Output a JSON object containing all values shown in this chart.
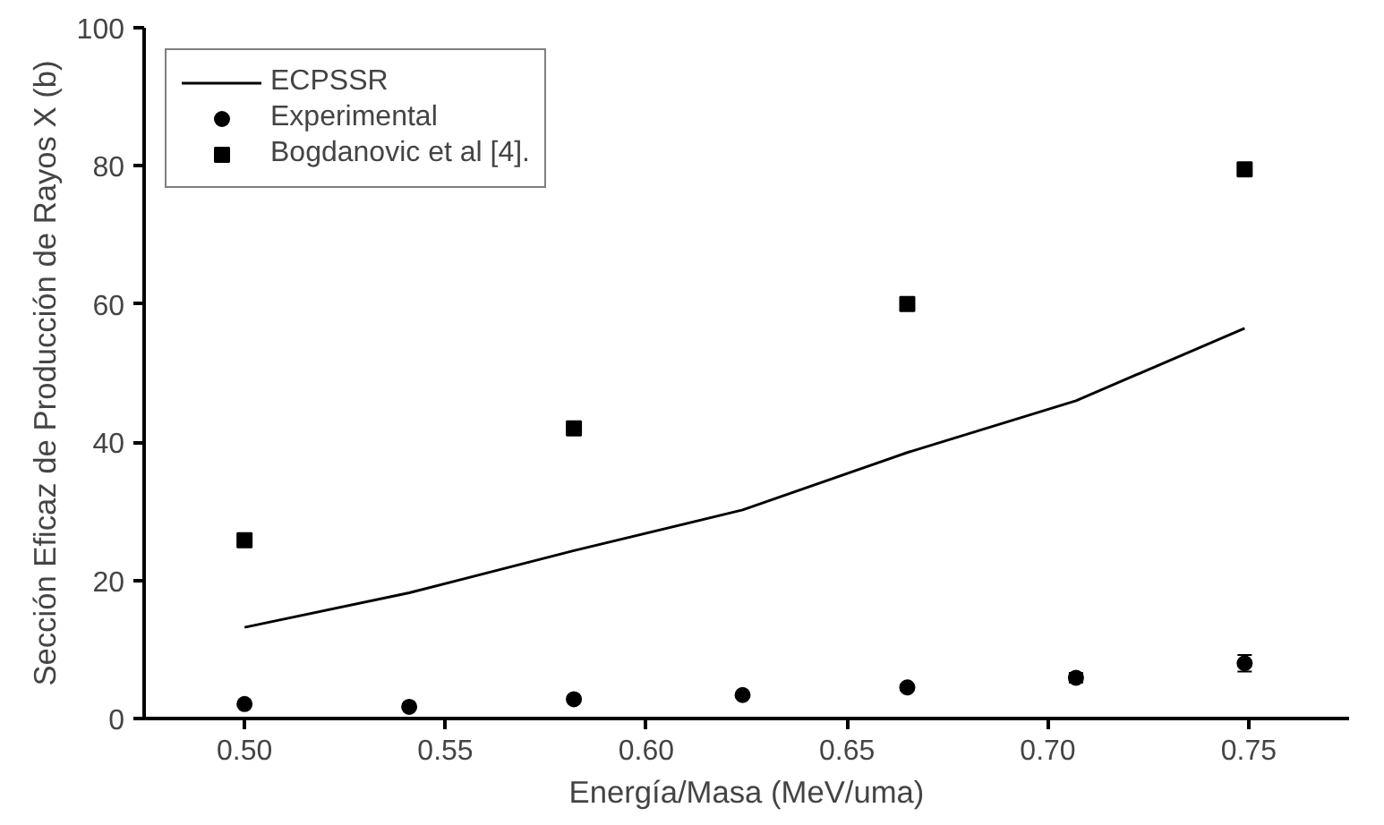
{
  "chart_data": {
    "type": "scatter",
    "xlabel": "Energía/Masa (MeV/uma)",
    "ylabel": "Sección Eficaz de Producción de Rayos X (b)",
    "xlim": [
      0.475,
      0.775
    ],
    "xticks": [
      {
        "value": 0.5,
        "label": "0.50"
      },
      0.55,
      {
        "value": 0.6,
        "label": "0.60"
      },
      0.65,
      {
        "value": 0.7,
        "label": "0.70"
      },
      0.75
    ],
    "ylim": [
      0,
      100
    ],
    "yticks": [
      0,
      20,
      40,
      60,
      80,
      100
    ],
    "grid": false,
    "legend": "top left",
    "series": [
      {
        "name": "ECPSSR",
        "type": "line",
        "color": "#000000",
        "marker": "none",
        "line_style": "solid",
        "x": [
          0.5,
          0.541,
          0.582,
          0.624,
          0.665,
          0.707,
          0.749
        ],
        "values": [
          13.2,
          18.2,
          24.3,
          30.2,
          38.5,
          46,
          56.5
        ]
      },
      {
        "name": "Experimental",
        "color": "#000000",
        "marker": "circle",
        "x": [
          0.5,
          0.541,
          0.582,
          0.624,
          0.665,
          0.707,
          0.749
        ],
        "values": [
          2.1,
          1.7,
          2.8,
          3.4,
          4.5,
          5.9,
          8.0
        ],
        "errors": [
          null,
          null,
          null,
          null,
          null,
          0.7,
          1.2
        ]
      },
      {
        "name": "Bogdanovic et al [4].",
        "color": "#000000",
        "marker": "square",
        "x": [
          0.5,
          0.582,
          0.665,
          0.749
        ],
        "values": [
          25.8,
          42,
          60,
          79.5
        ]
      }
    ]
  }
}
